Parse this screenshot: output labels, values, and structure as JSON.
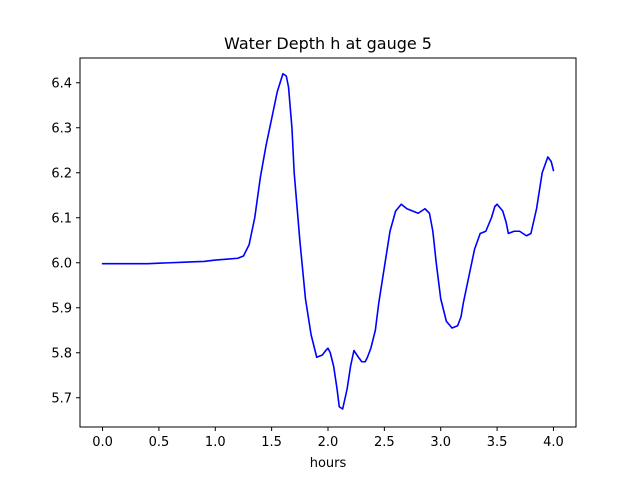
{
  "chart_data": {
    "type": "line",
    "title": "Water Depth h at gauge 5",
    "xlabel": "hours",
    "ylabel": "",
    "xlim": [
      -0.2,
      4.2
    ],
    "ylim": [
      5.635,
      6.455
    ],
    "x_ticks": [
      0.0,
      0.5,
      1.0,
      1.5,
      2.0,
      2.5,
      3.0,
      3.5,
      4.0
    ],
    "x_tick_labels": [
      "0.0",
      "0.5",
      "1.0",
      "1.5",
      "2.0",
      "2.5",
      "3.0",
      "3.5",
      "4.0"
    ],
    "y_ticks": [
      5.7,
      5.8,
      5.9,
      6.0,
      6.1,
      6.2,
      6.3,
      6.4
    ],
    "y_tick_labels": [
      "5.7",
      "5.8",
      "5.9",
      "6.0",
      "6.1",
      "6.2",
      "6.3",
      "6.4"
    ],
    "grid": false,
    "series": [
      {
        "color": "#0000ff",
        "x": [
          0.0,
          0.2,
          0.4,
          0.5,
          0.6,
          0.7,
          0.8,
          0.9,
          1.0,
          1.1,
          1.2,
          1.25,
          1.3,
          1.35,
          1.4,
          1.45,
          1.5,
          1.55,
          1.6,
          1.63,
          1.65,
          1.68,
          1.7,
          1.75,
          1.8,
          1.85,
          1.9,
          1.95,
          1.98,
          2.0,
          2.02,
          2.05,
          2.08,
          2.1,
          2.13,
          2.17,
          2.2,
          2.23,
          2.27,
          2.3,
          2.33,
          2.35,
          2.38,
          2.42,
          2.45,
          2.5,
          2.55,
          2.6,
          2.65,
          2.7,
          2.75,
          2.8,
          2.83,
          2.86,
          2.9,
          2.93,
          2.96,
          3.0,
          3.05,
          3.1,
          3.15,
          3.18,
          3.2,
          3.25,
          3.3,
          3.35,
          3.4,
          3.45,
          3.48,
          3.5,
          3.55,
          3.58,
          3.6,
          3.65,
          3.7,
          3.73,
          3.76,
          3.8,
          3.85,
          3.9,
          3.95,
          3.98,
          4.0
        ],
        "y": [
          5.998,
          5.998,
          5.998,
          5.999,
          6.0,
          6.001,
          6.002,
          6.003,
          6.006,
          6.008,
          6.01,
          6.015,
          6.04,
          6.1,
          6.19,
          6.26,
          6.32,
          6.38,
          6.42,
          6.415,
          6.39,
          6.3,
          6.2,
          6.05,
          5.92,
          5.84,
          5.79,
          5.795,
          5.805,
          5.81,
          5.8,
          5.77,
          5.72,
          5.68,
          5.675,
          5.72,
          5.77,
          5.805,
          5.79,
          5.78,
          5.78,
          5.79,
          5.81,
          5.85,
          5.91,
          5.99,
          6.07,
          6.115,
          6.13,
          6.12,
          6.115,
          6.11,
          6.115,
          6.12,
          6.11,
          6.07,
          6.0,
          5.92,
          5.87,
          5.855,
          5.86,
          5.88,
          5.91,
          5.97,
          6.03,
          6.065,
          6.07,
          6.1,
          6.125,
          6.13,
          6.115,
          6.09,
          6.065,
          6.07,
          6.07,
          6.065,
          6.06,
          6.065,
          6.12,
          6.2,
          6.235,
          6.225,
          6.205
        ]
      }
    ]
  },
  "colors": {
    "line": "#0000ff",
    "axes": "#000000",
    "background": "#ffffff"
  }
}
